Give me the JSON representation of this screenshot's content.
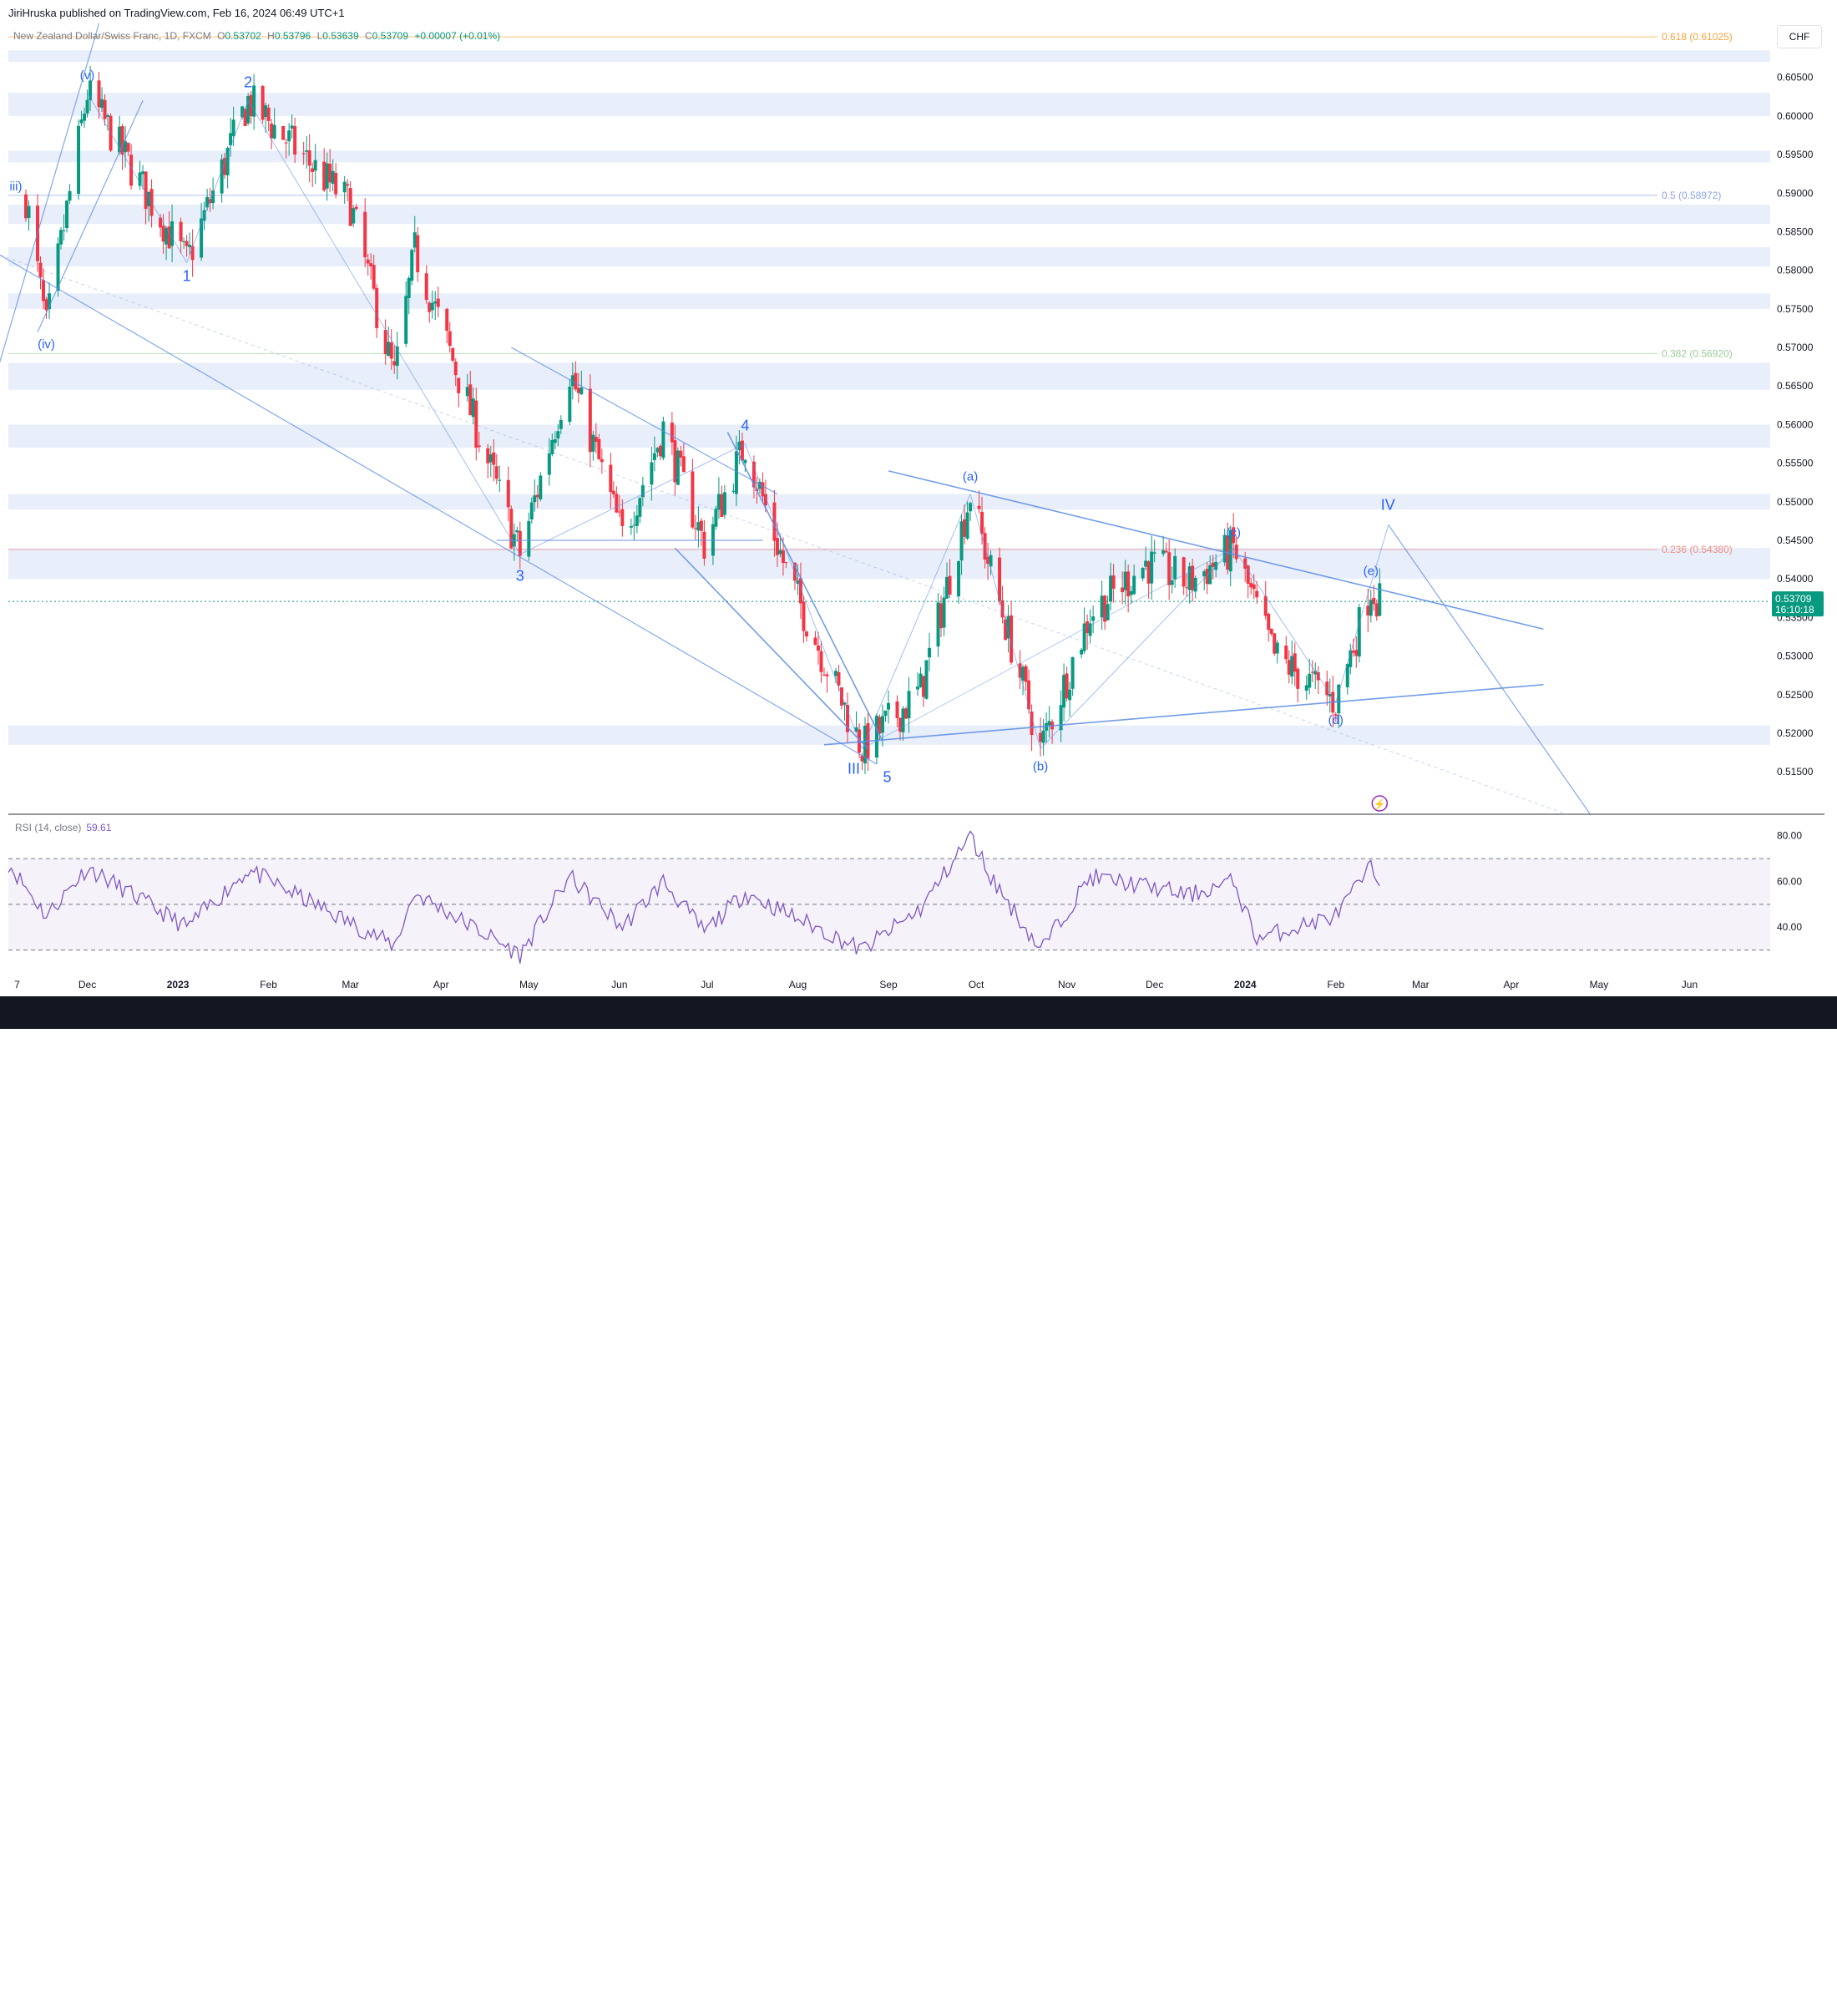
{
  "publish_info": "JiriHruska published on TradingView.com, Feb 16, 2024 06:49 UTC+1",
  "symbol": {
    "name": "New Zealand Dollar/Swiss Franc, 1D, FXCM",
    "open_label": "O",
    "open": "0.53702",
    "high_label": "H",
    "high": "0.53796",
    "low_label": "L",
    "low": "0.53639",
    "close_label": "C",
    "close": "0.53709",
    "change": "+0.00007 (+0.01%)"
  },
  "currency_button": "CHF",
  "last_price": {
    "value": "0.53709",
    "countdown": "16:10:18"
  },
  "rsi": {
    "label": "RSI (14, close)",
    "value": "59.61",
    "ticks": [
      "80.00",
      "60.00",
      "40.00"
    ],
    "levels": [
      70,
      50,
      30
    ]
  },
  "brand": "TradingView",
  "colors": {
    "up": "#089981",
    "down": "#f23645",
    "drawing": "#5b8ce5",
    "zone": "#e8eefa",
    "rsi": "#7e57c2",
    "last_price": "#089981"
  },
  "chart_data": {
    "type": "candlestick",
    "title": "New Zealand Dollar/Swiss Franc, 1D, FXCM",
    "ylim": [
      0.5095,
      0.612
    ],
    "y_ticks": [
      "0.60500",
      "0.60000",
      "0.59500",
      "0.59000",
      "0.58500",
      "0.58000",
      "0.57500",
      "0.57000",
      "0.56500",
      "0.56000",
      "0.55500",
      "0.55000",
      "0.54500",
      "0.54000",
      "0.53500",
      "0.53000",
      "0.52500",
      "0.52000",
      "0.51500"
    ],
    "x_ticks": [
      "7",
      "Dec",
      "2023",
      "Feb",
      "Mar",
      "Apr",
      "May",
      "Jun",
      "Jul",
      "Aug",
      "Sep",
      "Oct",
      "Nov",
      "Dec",
      "2024",
      "Feb",
      "Mar",
      "Apr",
      "May",
      "Jun"
    ],
    "pivots": [
      {
        "date": "2022-11-10",
        "price": 0.5895
      },
      {
        "date": "2022-11-17",
        "price": 0.5725
      },
      {
        "date": "2022-12-01",
        "price": 0.603
      },
      {
        "date": "2023-01-04",
        "price": 0.581
      },
      {
        "date": "2023-01-25",
        "price": 0.602
      },
      {
        "date": "2023-03-01",
        "price": 0.5885
      },
      {
        "date": "2023-03-16",
        "price": 0.566
      },
      {
        "date": "2023-03-23",
        "price": 0.5825
      },
      {
        "date": "2023-04-28",
        "price": 0.5432
      },
      {
        "date": "2023-05-15",
        "price": 0.567
      },
      {
        "date": "2023-06-02",
        "price": 0.5455
      },
      {
        "date": "2023-06-16",
        "price": 0.5595
      },
      {
        "date": "2023-06-30",
        "price": 0.5445
      },
      {
        "date": "2023-07-14",
        "price": 0.5575
      },
      {
        "date": "2023-07-28",
        "price": 0.541
      },
      {
        "date": "2023-08-23",
        "price": 0.518
      },
      {
        "date": "2023-09-12",
        "price": 0.5255
      },
      {
        "date": "2023-09-29",
        "price": 0.551
      },
      {
        "date": "2023-10-06",
        "price": 0.541
      },
      {
        "date": "2023-10-23",
        "price": 0.518
      },
      {
        "date": "2023-11-09",
        "price": 0.5355
      },
      {
        "date": "2023-11-28",
        "price": 0.542
      },
      {
        "date": "2023-12-13",
        "price": 0.5395
      },
      {
        "date": "2023-12-28",
        "price": 0.544
      },
      {
        "date": "2024-01-11",
        "price": 0.53
      },
      {
        "date": "2024-02-01",
        "price": 0.524
      },
      {
        "date": "2024-02-13",
        "price": 0.539
      },
      {
        "date": "2024-02-16",
        "price": 0.53709
      }
    ],
    "fib_levels": [
      {
        "label": "0.618 (0.61025)",
        "price": 0.61025
      },
      {
        "label": "0.5 (0.58972)",
        "price": 0.58972
      },
      {
        "label": "0.382 (0.56920)",
        "price": 0.5692
      },
      {
        "label": "0.236 (0.54380)",
        "price": 0.5438
      }
    ],
    "wave_labels": [
      {
        "text": "(v)",
        "date": "2022-12-01",
        "price": 0.603
      },
      {
        "text": "2",
        "date": "2023-01-25",
        "price": 0.602
      },
      {
        "text": "iii)",
        "date": "2022-11-10",
        "price": 0.5895
      },
      {
        "text": "1",
        "date": "2023-01-04",
        "price": 0.581
      },
      {
        "text": "(iv)",
        "date": "2022-11-17",
        "price": 0.5725
      },
      {
        "text": "3",
        "date": "2023-04-28",
        "price": 0.5432
      },
      {
        "text": "4",
        "date": "2023-07-14",
        "price": 0.5575
      },
      {
        "text": "III",
        "date": "2023-08-23",
        "price": 0.518
      },
      {
        "text": "5",
        "date": "2023-08-23",
        "price": 0.518
      },
      {
        "text": "(a)",
        "date": "2023-09-29",
        "price": 0.551
      },
      {
        "text": "(b)",
        "date": "2023-10-23",
        "price": 0.518
      },
      {
        "text": "(c)",
        "date": "2023-12-28",
        "price": 0.544
      },
      {
        "text": "(d)",
        "date": "2024-02-01",
        "price": 0.524
      },
      {
        "text": "(e)",
        "date": "2024-02-13",
        "price": 0.539
      },
      {
        "text": "IV",
        "date": "2024-02-16",
        "price": 0.547
      }
    ],
    "resistance_zones": [
      [
        0.607,
        0.6085
      ],
      [
        0.6,
        0.603
      ],
      [
        0.594,
        0.5955
      ],
      [
        0.586,
        0.5885
      ],
      [
        0.5805,
        0.583
      ],
      [
        0.575,
        0.577
      ],
      [
        0.5645,
        0.568
      ],
      [
        0.557,
        0.56
      ],
      [
        0.549,
        0.551
      ],
      [
        0.54,
        0.544
      ],
      [
        0.5185,
        0.521
      ]
    ]
  }
}
